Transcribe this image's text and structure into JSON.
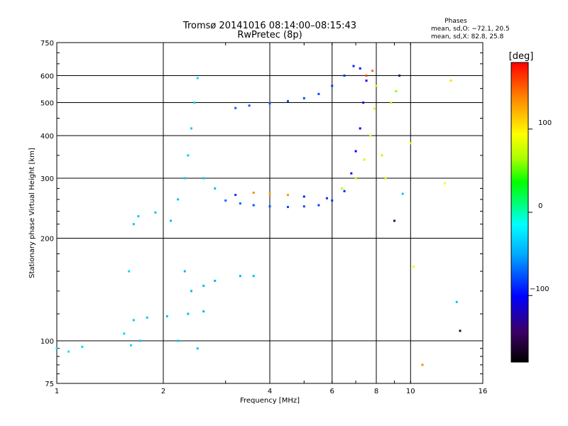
{
  "chart_data": {
    "type": "scatter",
    "title": "Tromsø 20141016 08:14:00–08:15:43",
    "subtitle": "RwPretec (8p)",
    "xlabel": "Frequency [MHz]",
    "ylabel": "Stationary phase Virtual Height [km]",
    "x_scale": "log",
    "y_scale": "log",
    "xlim": [
      1,
      16
    ],
    "ylim": [
      75,
      750
    ],
    "x_ticks": [
      {
        "value": 1,
        "label": "1"
      },
      {
        "value": 2,
        "label": "2"
      },
      {
        "value": 4,
        "label": "4"
      },
      {
        "value": 6,
        "label": "6"
      },
      {
        "value": 8,
        "label": "8"
      },
      {
        "value": 10,
        "label": "10"
      },
      {
        "value": 16,
        "label": "16"
      }
    ],
    "y_ticks": [
      {
        "value": 75,
        "label": "75"
      },
      {
        "value": 100,
        "label": "100"
      },
      {
        "value": 200,
        "label": "200"
      },
      {
        "value": 300,
        "label": "300"
      },
      {
        "value": 400,
        "label": "400"
      },
      {
        "value": 500,
        "label": "500"
      },
      {
        "value": 600,
        "label": "600"
      },
      {
        "value": 750,
        "label": "750"
      }
    ],
    "grid": true,
    "phase_legend": {
      "heading": "Phases",
      "line1": "mean, sd,O: −72.1, 20.5",
      "line2": "mean, sd,X: 82.8, 25.8"
    },
    "colorbar": {
      "label": "[deg]",
      "range": [
        -180,
        180
      ],
      "ticks": [
        {
          "value": 100,
          "label": "100"
        },
        {
          "value": 0,
          "label": "0"
        },
        {
          "value": -100,
          "label": "−100"
        }
      ],
      "colors": [
        "#000000",
        "#3c0064",
        "#0000ff",
        "#00aaff",
        "#00ffff",
        "#00ff88",
        "#00ff00",
        "#aaff00",
        "#ffff00",
        "#ff8800",
        "#ff0000"
      ]
    },
    "series": [
      {
        "values": [
          {
            "x": 1.0,
            "y": 95,
            "phase": -30
          },
          {
            "x": 1.08,
            "y": 93,
            "phase": -25
          },
          {
            "x": 1.18,
            "y": 96,
            "phase": -28
          },
          {
            "x": 1.55,
            "y": 105,
            "phase": -30
          },
          {
            "x": 1.62,
            "y": 97,
            "phase": -28
          },
          {
            "x": 1.72,
            "y": 100,
            "phase": -40
          },
          {
            "x": 1.65,
            "y": 115,
            "phase": -35
          },
          {
            "x": 1.8,
            "y": 117,
            "phase": -38
          },
          {
            "x": 2.05,
            "y": 118,
            "phase": -40
          },
          {
            "x": 2.35,
            "y": 120,
            "phase": -42
          },
          {
            "x": 2.6,
            "y": 122,
            "phase": -45
          },
          {
            "x": 1.6,
            "y": 160,
            "phase": -30
          },
          {
            "x": 1.65,
            "y": 220,
            "phase": -35
          },
          {
            "x": 1.7,
            "y": 232,
            "phase": -38
          },
          {
            "x": 1.9,
            "y": 238,
            "phase": -40
          },
          {
            "x": 2.1,
            "y": 225,
            "phase": -42
          },
          {
            "x": 2.2,
            "y": 260,
            "phase": -40
          },
          {
            "x": 2.3,
            "y": 300,
            "phase": -38
          },
          {
            "x": 2.35,
            "y": 350,
            "phase": -35
          },
          {
            "x": 2.4,
            "y": 420,
            "phase": -35
          },
          {
            "x": 2.45,
            "y": 500,
            "phase": -32
          },
          {
            "x": 2.5,
            "y": 590,
            "phase": -30
          },
          {
            "x": 2.3,
            "y": 160,
            "phase": -45
          },
          {
            "x": 2.4,
            "y": 140,
            "phase": -45
          },
          {
            "x": 2.6,
            "y": 145,
            "phase": -45
          },
          {
            "x": 2.8,
            "y": 150,
            "phase": -48
          },
          {
            "x": 2.2,
            "y": 100,
            "phase": -40
          },
          {
            "x": 2.5,
            "y": 95,
            "phase": -42
          },
          {
            "x": 2.6,
            "y": 300,
            "phase": -40
          },
          {
            "x": 2.8,
            "y": 280,
            "phase": -42
          },
          {
            "x": 3.0,
            "y": 258,
            "phase": -70
          },
          {
            "x": 3.3,
            "y": 253,
            "phase": -72
          },
          {
            "x": 3.6,
            "y": 250,
            "phase": -75
          },
          {
            "x": 4.0,
            "y": 248,
            "phase": -75
          },
          {
            "x": 4.5,
            "y": 247,
            "phase": -78
          },
          {
            "x": 5.0,
            "y": 248,
            "phase": -80
          },
          {
            "x": 5.5,
            "y": 250,
            "phase": -82
          },
          {
            "x": 6.0,
            "y": 258,
            "phase": -85
          },
          {
            "x": 6.5,
            "y": 275,
            "phase": -90
          },
          {
            "x": 6.8,
            "y": 310,
            "phase": -95
          },
          {
            "x": 7.0,
            "y": 360,
            "phase": -100
          },
          {
            "x": 7.2,
            "y": 420,
            "phase": -105
          },
          {
            "x": 7.35,
            "y": 500,
            "phase": -105
          },
          {
            "x": 7.5,
            "y": 580,
            "phase": -100
          },
          {
            "x": 7.2,
            "y": 630,
            "phase": -95
          },
          {
            "x": 6.9,
            "y": 640,
            "phase": -90
          },
          {
            "x": 6.5,
            "y": 600,
            "phase": -85
          },
          {
            "x": 6.0,
            "y": 560,
            "phase": -82
          },
          {
            "x": 5.5,
            "y": 530,
            "phase": -80
          },
          {
            "x": 5.0,
            "y": 515,
            "phase": -78
          },
          {
            "x": 4.5,
            "y": 505,
            "phase": -76
          },
          {
            "x": 4.0,
            "y": 498,
            "phase": -74
          },
          {
            "x": 3.5,
            "y": 490,
            "phase": -72
          },
          {
            "x": 3.2,
            "y": 482,
            "phase": -72
          },
          {
            "x": 3.2,
            "y": 268,
            "phase": -85
          },
          {
            "x": 3.6,
            "y": 272,
            "phase": 140
          },
          {
            "x": 4.0,
            "y": 270,
            "phase": 130
          },
          {
            "x": 4.5,
            "y": 268,
            "phase": 135
          },
          {
            "x": 5.0,
            "y": 265,
            "phase": -90
          },
          {
            "x": 5.8,
            "y": 262,
            "phase": -88
          },
          {
            "x": 6.4,
            "y": 280,
            "phase": 70
          },
          {
            "x": 7.0,
            "y": 300,
            "phase": 80
          },
          {
            "x": 7.4,
            "y": 340,
            "phase": 85
          },
          {
            "x": 7.7,
            "y": 400,
            "phase": 90
          },
          {
            "x": 7.9,
            "y": 480,
            "phase": 85
          },
          {
            "x": 8.0,
            "y": 560,
            "phase": 80
          },
          {
            "x": 7.8,
            "y": 620,
            "phase": 150
          },
          {
            "x": 7.5,
            "y": 600,
            "phase": 160
          },
          {
            "x": 8.3,
            "y": 350,
            "phase": 75
          },
          {
            "x": 8.5,
            "y": 300,
            "phase": 78
          },
          {
            "x": 8.8,
            "y": 500,
            "phase": 70
          },
          {
            "x": 9.1,
            "y": 540,
            "phase": 65
          },
          {
            "x": 9.3,
            "y": 600,
            "phase": -150
          },
          {
            "x": 9.5,
            "y": 270,
            "phase": -40
          },
          {
            "x": 9.0,
            "y": 225,
            "phase": -150
          },
          {
            "x": 10.0,
            "y": 380,
            "phase": 90
          },
          {
            "x": 10.2,
            "y": 165,
            "phase": 95
          },
          {
            "x": 10.8,
            "y": 85,
            "phase": 140
          },
          {
            "x": 12.5,
            "y": 290,
            "phase": 100
          },
          {
            "x": 13.0,
            "y": 580,
            "phase": 110
          },
          {
            "x": 13.5,
            "y": 130,
            "phase": -40
          },
          {
            "x": 13.8,
            "y": 107,
            "phase": -160
          },
          {
            "x": 3.6,
            "y": 155,
            "phase": -40
          },
          {
            "x": 3.3,
            "y": 155,
            "phase": -45
          }
        ]
      }
    ]
  }
}
